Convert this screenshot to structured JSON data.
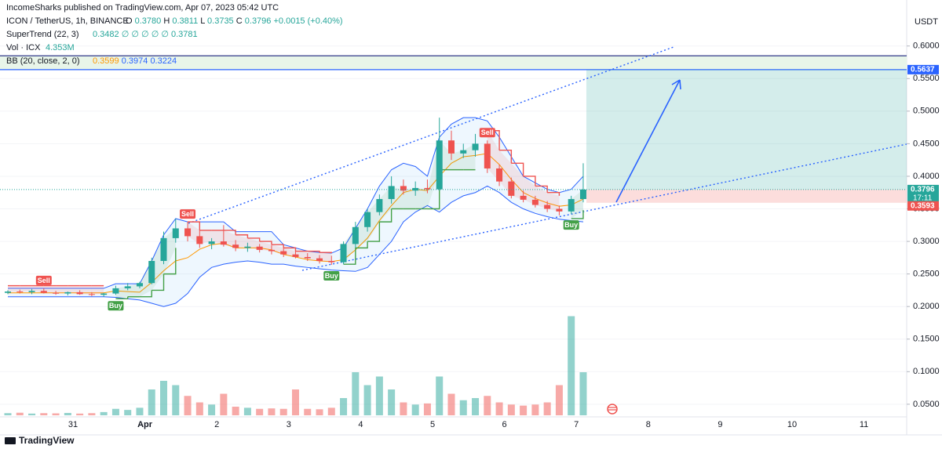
{
  "header": {
    "publisher": "IncomeSharks published on TradingView.com, Apr 07, 2023 05:42 UTC",
    "symbol": "ICON / TetherUS, 1h, BINANCE",
    "ohlc": [
      "O",
      "0.3780",
      "H",
      "0.3811",
      "L",
      "0.3735",
      "C",
      "0.3796",
      "+0.0015 (+0.40%)"
    ],
    "supertrend": {
      "name": "SuperTrend (22, 3)",
      "values": [
        "0.3482",
        "∅",
        "∅",
        "∅",
        "∅",
        "∅",
        "0.3781"
      ]
    },
    "volume": {
      "name": "Vol · ICX",
      "value": "4.353M"
    },
    "bb": {
      "name": "BB (20, close, 2, 0)",
      "values": [
        "0.3599",
        "0.3974",
        "0.3224"
      ]
    },
    "currency": "USDT"
  },
  "chart_data": {
    "type": "candlestick",
    "categories": [
      "31",
      "Apr",
      "2",
      "3",
      "4",
      "5",
      "6",
      "7",
      "8",
      "9",
      "10",
      "11"
    ],
    "open": [
      0.221,
      0.223,
      0.222,
      0.224,
      0.221,
      0.22,
      0.222,
      0.219,
      0.218,
      0.22,
      0.228,
      0.231,
      0.236,
      0.27,
      0.305,
      0.32,
      0.308,
      0.296,
      0.3,
      0.295,
      0.29,
      0.292,
      0.287,
      0.285,
      0.28,
      0.276,
      0.274,
      0.27,
      0.268,
      0.296,
      0.322,
      0.345,
      0.365,
      0.385,
      0.378,
      0.382,
      0.38,
      0.455,
      0.435,
      0.44,
      0.45,
      0.412,
      0.392,
      0.37,
      0.364,
      0.356,
      0.35,
      0.346,
      0.365
    ],
    "high": [
      0.225,
      0.226,
      0.227,
      0.228,
      0.224,
      0.223,
      0.225,
      0.222,
      0.221,
      0.232,
      0.236,
      0.238,
      0.275,
      0.315,
      0.335,
      0.33,
      0.318,
      0.305,
      0.325,
      0.302,
      0.298,
      0.296,
      0.294,
      0.29,
      0.288,
      0.282,
      0.279,
      0.278,
      0.3,
      0.33,
      0.35,
      0.372,
      0.4,
      0.395,
      0.392,
      0.395,
      0.49,
      0.47,
      0.45,
      0.465,
      0.455,
      0.418,
      0.398,
      0.378,
      0.37,
      0.362,
      0.355,
      0.37,
      0.42
    ],
    "low": [
      0.219,
      0.22,
      0.219,
      0.22,
      0.218,
      0.217,
      0.218,
      0.216,
      0.215,
      0.218,
      0.225,
      0.228,
      0.234,
      0.265,
      0.298,
      0.3,
      0.29,
      0.288,
      0.292,
      0.285,
      0.284,
      0.283,
      0.28,
      0.276,
      0.274,
      0.27,
      0.266,
      0.264,
      0.265,
      0.29,
      0.315,
      0.34,
      0.358,
      0.372,
      0.37,
      0.374,
      0.378,
      0.425,
      0.428,
      0.43,
      0.405,
      0.385,
      0.366,
      0.36,
      0.352,
      0.345,
      0.34,
      0.342,
      0.36
    ],
    "close": [
      0.223,
      0.222,
      0.224,
      0.221,
      0.22,
      0.222,
      0.219,
      0.218,
      0.22,
      0.228,
      0.231,
      0.236,
      0.27,
      0.305,
      0.32,
      0.308,
      0.296,
      0.3,
      0.295,
      0.29,
      0.292,
      0.287,
      0.285,
      0.28,
      0.276,
      0.274,
      0.27,
      0.268,
      0.296,
      0.322,
      0.345,
      0.365,
      0.385,
      0.378,
      0.382,
      0.38,
      0.455,
      0.435,
      0.44,
      0.45,
      0.412,
      0.392,
      0.37,
      0.364,
      0.356,
      0.35,
      0.346,
      0.365,
      0.3796
    ],
    "volume": [
      1,
      1.2,
      0.8,
      1,
      0.9,
      1.1,
      0.8,
      1,
      1.5,
      3,
      2.5,
      3.5,
      12,
      16,
      14,
      9,
      6,
      5,
      10,
      4,
      3.5,
      3,
      3.2,
      3,
      12,
      3,
      2.8,
      3.5,
      8,
      20,
      14,
      18,
      12,
      6,
      5,
      5.5,
      18,
      10,
      7,
      8,
      9,
      6,
      5,
      4.5,
      5,
      6,
      14,
      46,
      20
    ],
    "bb_upper": [
      0.228,
      0.228,
      0.228,
      0.228,
      0.228,
      0.228,
      0.228,
      0.228,
      0.228,
      0.235,
      0.235,
      0.235,
      0.27,
      0.31,
      0.335,
      0.33,
      0.33,
      0.33,
      0.33,
      0.315,
      0.315,
      0.315,
      0.315,
      0.295,
      0.29,
      0.285,
      0.283,
      0.282,
      0.29,
      0.32,
      0.35,
      0.385,
      0.41,
      0.42,
      0.415,
      0.4,
      0.46,
      0.48,
      0.49,
      0.49,
      0.485,
      0.46,
      0.43,
      0.4,
      0.39,
      0.38,
      0.375,
      0.38,
      0.4
    ],
    "bb_basis": [
      0.221,
      0.221,
      0.221,
      0.221,
      0.221,
      0.221,
      0.221,
      0.221,
      0.221,
      0.224,
      0.223,
      0.222,
      0.237,
      0.255,
      0.27,
      0.275,
      0.288,
      0.295,
      0.297,
      0.29,
      0.29,
      0.29,
      0.287,
      0.28,
      0.276,
      0.272,
      0.27,
      0.269,
      0.272,
      0.287,
      0.305,
      0.332,
      0.355,
      0.375,
      0.38,
      0.378,
      0.4,
      0.42,
      0.43,
      0.432,
      0.435,
      0.418,
      0.395,
      0.375,
      0.366,
      0.359,
      0.354,
      0.356,
      0.365
    ],
    "bb_lower": [
      0.215,
      0.215,
      0.215,
      0.215,
      0.215,
      0.215,
      0.215,
      0.215,
      0.215,
      0.214,
      0.212,
      0.21,
      0.205,
      0.2,
      0.205,
      0.22,
      0.245,
      0.26,
      0.265,
      0.268,
      0.27,
      0.268,
      0.265,
      0.265,
      0.262,
      0.26,
      0.258,
      0.256,
      0.255,
      0.254,
      0.26,
      0.28,
      0.3,
      0.33,
      0.345,
      0.355,
      0.345,
      0.36,
      0.37,
      0.375,
      0.385,
      0.375,
      0.36,
      0.35,
      0.343,
      0.338,
      0.334,
      0.332,
      0.33
    ],
    "supertrend": [
      0.232,
      0.232,
      0.232,
      0.232,
      0.232,
      0.232,
      0.232,
      0.232,
      0.232,
      0.212,
      0.215,
      0.215,
      0.225,
      0.25,
      0.29,
      0.33,
      0.317,
      0.317,
      0.317,
      0.31,
      0.305,
      0.3,
      0.295,
      0.29,
      0.285,
      0.285,
      0.283,
      0.282,
      0.265,
      0.29,
      0.3,
      0.33,
      0.35,
      0.35,
      0.35,
      0.35,
      0.41,
      0.41,
      0.41,
      0.41,
      0.47,
      0.44,
      0.42,
      0.4,
      0.385,
      0.375,
      0.37,
      0.335,
      0.348
    ],
    "signals": [
      {
        "label": "Sell",
        "index": 3
      },
      {
        "label": "Buy",
        "index": 9
      },
      {
        "label": "Sell",
        "index": 15
      },
      {
        "label": "Buy",
        "index": 27
      },
      {
        "label": "Sell",
        "index": 40
      },
      {
        "label": "Buy",
        "index": 47
      }
    ],
    "ylim": [
      0.033,
      0.661
    ],
    "yticks": [
      {
        "value": 0.6,
        "label": "0.6000"
      },
      {
        "value": 0.55,
        "label": "0.5500"
      },
      {
        "value": 0.5,
        "label": "0.5000"
      },
      {
        "value": 0.45,
        "label": "0.4500"
      },
      {
        "value": 0.4,
        "label": "0.4000"
      },
      {
        "value": 0.35,
        "label": "0.3500"
      },
      {
        "value": 0.3,
        "label": "0.3000"
      },
      {
        "value": 0.25,
        "label": "0.2500"
      },
      {
        "value": 0.2,
        "label": "0.2000"
      },
      {
        "value": 0.15,
        "label": "0.1500"
      },
      {
        "value": 0.1,
        "label": "0.1000"
      },
      {
        "value": 0.05,
        "label": "0.0500"
      }
    ],
    "colors": {
      "up": "#26a69a",
      "down": "#ef5350",
      "bb": "#2962ff",
      "basis": "#ff9800"
    },
    "target": 0.5637,
    "stop": 0.3593,
    "resistance_zone": [
      0.5637,
      0.585
    ],
    "countdown": "17:11"
  },
  "footer": {
    "brand": "TradingView"
  }
}
